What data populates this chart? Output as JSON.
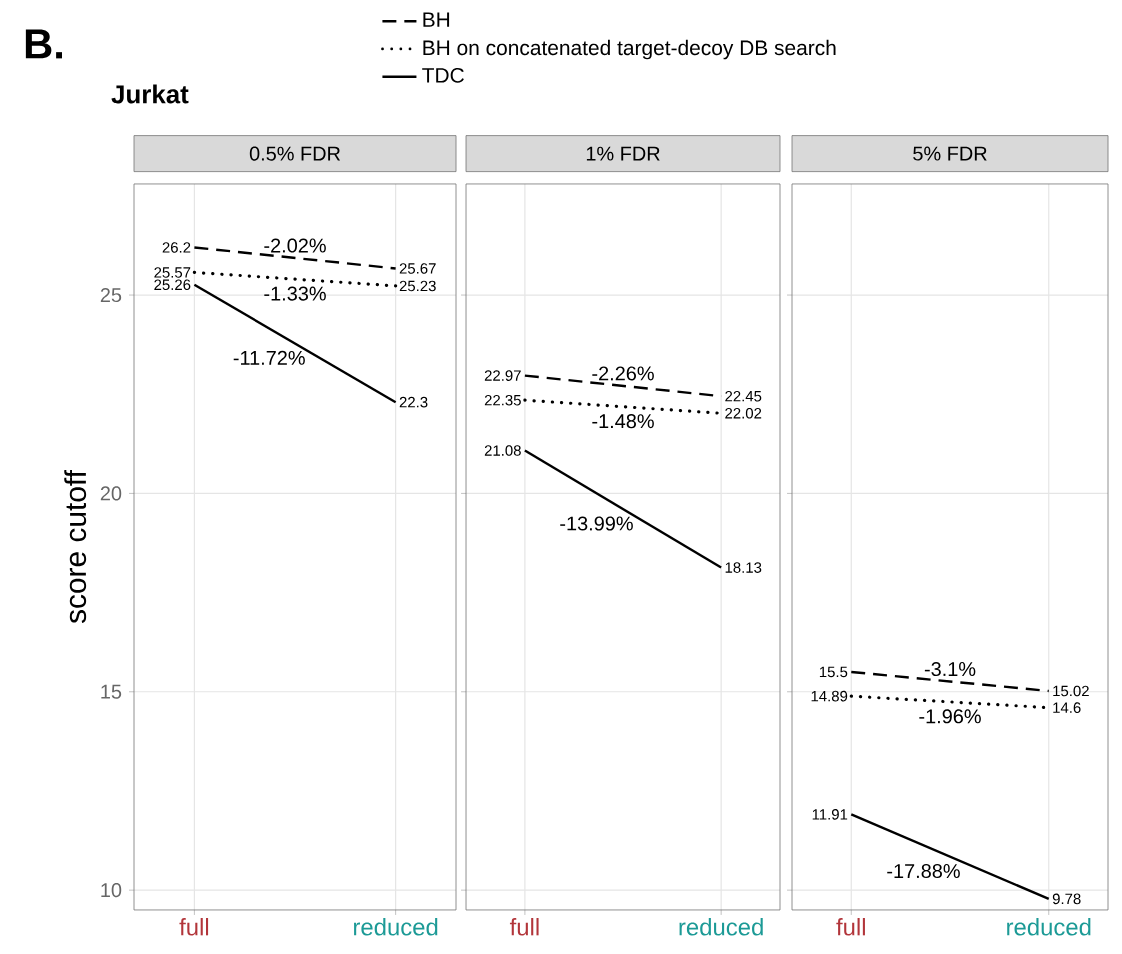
{
  "chart_data": [
    {
      "type": "line",
      "title": "0.5% FDR",
      "ylabel": "score cutoff",
      "annotations": [
        "B.",
        "Jurkat",
        "-2.02%",
        "-1.33%",
        "-11.72%"
      ],
      "categories": [
        "full",
        "reduced"
      ],
      "series": [
        {
          "name": "BH",
          "color": "#000000",
          "line_style": "dashed",
          "values": [
            26.2,
            25.67
          ]
        },
        {
          "name": "BH on concatenated target-decoy DB search",
          "color": "#000000",
          "line_style": "dotted",
          "values": [
            25.57,
            25.23
          ]
        },
        {
          "name": "TDC",
          "color": "#000000",
          "line_style": "solid",
          "values": [
            25.26,
            22.3
          ]
        }
      ],
      "ylim": [
        9.5,
        27.8
      ],
      "yticks": [
        10,
        15,
        20,
        25
      ],
      "grid": true,
      "legend": "top",
      "data_labels": true
    },
    {
      "type": "line",
      "title": "1% FDR",
      "annotations": [
        "-2.26%",
        "-1.48%",
        "-13.99%"
      ],
      "categories": [
        "full",
        "reduced"
      ],
      "series": [
        {
          "color": "#000000",
          "line_style": "dashed",
          "values": [
            22.97,
            22.45
          ]
        },
        {
          "color": "#000000",
          "line_style": "dotted",
          "values": [
            22.35,
            22.02
          ]
        },
        {
          "color": "#000000",
          "line_style": "solid",
          "values": [
            21.08,
            18.13
          ]
        }
      ],
      "ylim": [
        9.5,
        27.8
      ],
      "yticks": [
        10,
        15,
        20,
        25
      ],
      "grid": true,
      "tick_labels": "x",
      "data_labels": true
    },
    {
      "type": "line",
      "title": "5% FDR",
      "annotations": [
        "-3.1%",
        "-1.96%",
        "-17.88%"
      ],
      "categories": [
        "full",
        "reduced"
      ],
      "series": [
        {
          "color": "#000000",
          "line_style": "dashed",
          "values": [
            15.5,
            15.02
          ]
        },
        {
          "color": "#000000",
          "line_style": "dotted",
          "values": [
            14.89,
            14.6
          ]
        },
        {
          "color": "#000000",
          "line_style": "solid",
          "values": [
            11.91,
            9.78
          ]
        }
      ],
      "ylim": [
        9.5,
        27.8
      ],
      "yticks": [
        10,
        15,
        20,
        25
      ],
      "grid": true,
      "tick_labels": "x",
      "data_labels": true
    }
  ]
}
